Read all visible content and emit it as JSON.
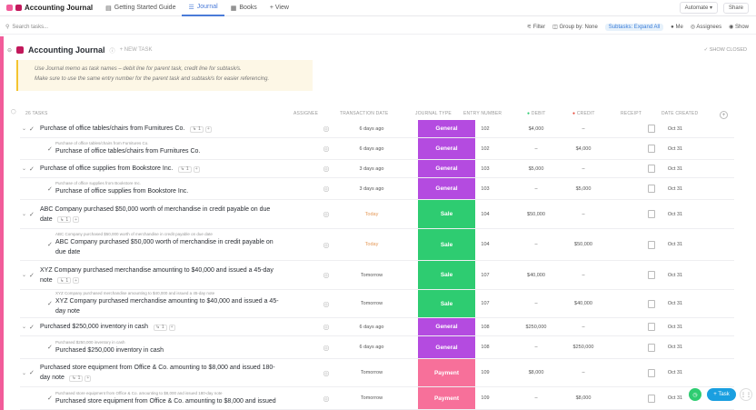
{
  "topbar": {
    "app_title": "Accounting Journal",
    "tabs": [
      {
        "label": "Getting Started Guide"
      },
      {
        "label": "Journal"
      },
      {
        "label": "Books"
      },
      {
        "label": "+ View"
      }
    ],
    "automate": "Automate",
    "share": "Share"
  },
  "toolbar": {
    "search_placeholder": "Search tasks...",
    "filter": "Filter",
    "group_by": "Group by: None",
    "subtasks": "Subtasks: Expand All",
    "me": "Me",
    "assignees": "Assignees",
    "show": "Show"
  },
  "list": {
    "title": "Accounting Journal",
    "new_task": "+ NEW TASK",
    "show_closed": "SHOW CLOSED",
    "note_line1": "Use Journal memo as task names – debit line for parent task, credit line for subtask/s.",
    "note_line2": "Make sure to use the same entry number for the parent task and subtask/s for easier referencing."
  },
  "columns": {
    "tasks": "26 TASKS",
    "assignee": "ASSIGNEE",
    "date": "TRANSACTION DATE",
    "type": "JOURNAL TYPE",
    "entry": "ENTRY NUMBER",
    "debit": "DEBIT",
    "credit": "CREDIT",
    "receipt": "RECEIPT",
    "created": "DATE CREATED"
  },
  "type_colors": {
    "General": "#b44be0",
    "Sale": "#2ecc71",
    "Payment": "#f7709a"
  },
  "rows": [
    {
      "parent_label": "",
      "name": "Purchase of office tables/chairs from Furnitures Co.",
      "subcount": "1",
      "date": "6 days ago",
      "type": "General",
      "entry": "102",
      "debit": "$4,000",
      "credit": "–",
      "created": "Oct 31"
    },
    {
      "parent_label": "Purchase of office tables/chairs from Furnitures Co.",
      "name": "Purchase of office tables/chairs from Furnitures Co.",
      "subcount": "",
      "date": "6 days ago",
      "type": "General",
      "entry": "102",
      "debit": "–",
      "credit": "$4,000",
      "created": "Oct 31"
    },
    {
      "parent_label": "",
      "name": "Purchase of office supplies from Bookstore Inc.",
      "subcount": "1",
      "date": "3 days ago",
      "type": "General",
      "entry": "103",
      "debit": "$5,000",
      "credit": "–",
      "created": "Oct 31"
    },
    {
      "parent_label": "Purchase of office supplies from Bookstore Inc.",
      "name": "Purchase of office supplies from Bookstore Inc.",
      "subcount": "",
      "date": "3 days ago",
      "type": "General",
      "entry": "103",
      "debit": "–",
      "credit": "$5,000",
      "created": "Oct 31"
    },
    {
      "parent_label": "",
      "name": "ABC Company purchased $50,000 worth of merchandise in credit payable on due date",
      "subcount": "1",
      "date": "Today",
      "type": "Sale",
      "entry": "104",
      "debit": "$50,000",
      "credit": "–",
      "created": "Oct 31"
    },
    {
      "parent_label": "ABC Company purchased $50,000 worth of merchandise in credit payable on due date",
      "name": "ABC Company purchased $50,000 worth of merchandise in credit payable on due date",
      "subcount": "",
      "date": "Today",
      "type": "Sale",
      "entry": "104",
      "debit": "–",
      "credit": "$50,000",
      "created": "Oct 31"
    },
    {
      "parent_label": "",
      "name": "XYZ Company purchased merchandise amounting to $40,000 and issued a 45-day note",
      "subcount": "1",
      "date": "Tomorrow",
      "type": "Sale",
      "entry": "107",
      "debit": "$40,000",
      "credit": "–",
      "created": "Oct 31"
    },
    {
      "parent_label": "XYZ Company purchased merchandise amounting to $40,000 and issued a 45-day note",
      "name": "XYZ Company purchased merchandise amounting to $40,000 and issued a 45-day note",
      "subcount": "",
      "date": "Tomorrow",
      "type": "Sale",
      "entry": "107",
      "debit": "–",
      "credit": "$40,000",
      "created": "Oct 31"
    },
    {
      "parent_label": "",
      "name": "Purchased $250,000 inventory in cash",
      "subcount": "1",
      "date": "6 days ago",
      "type": "General",
      "entry": "108",
      "debit": "$250,000",
      "credit": "–",
      "created": "Oct 31"
    },
    {
      "parent_label": "Purchased $250,000 inventory in cash",
      "name": "Purchased $250,000 inventory in cash",
      "subcount": "",
      "date": "6 days ago",
      "type": "General",
      "entry": "108",
      "debit": "–",
      "credit": "$250,000",
      "created": "Oct 31"
    },
    {
      "parent_label": "",
      "name": "Purchased store equipment from Office & Co. amounting to $8,000 and issued 180-day note",
      "subcount": "1",
      "date": "Tomorrow",
      "type": "Payment",
      "entry": "109",
      "debit": "$8,000",
      "credit": "–",
      "created": "Oct 31"
    },
    {
      "parent_label": "Purchased store equipment from Office & Co. amounting to $8,000 and issued 180-day note",
      "name": "Purchased store equipment from Office & Co. amounting to $8,000 and issued",
      "subcount": "",
      "date": "Tomorrow",
      "type": "Payment",
      "entry": "109",
      "debit": "–",
      "credit": "$8,000",
      "created": "Oct 31"
    }
  ],
  "fab": {
    "task": "+ Task"
  }
}
